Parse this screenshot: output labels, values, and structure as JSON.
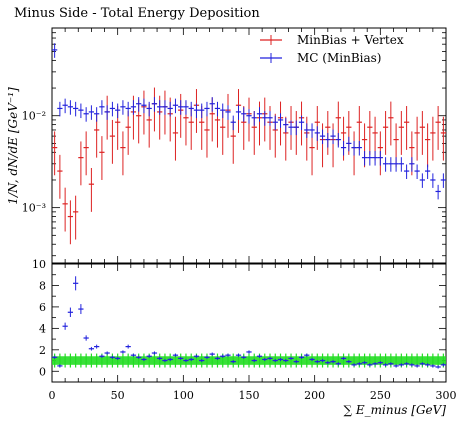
{
  "chart_data": [
    {
      "type": "scatter",
      "title": "Minus Side - Total Energy Deposition",
      "ylabel": "1/N, dN/dE [GeV⁻¹]",
      "yscale": "log",
      "ylim": [
        0.00025,
        0.09
      ],
      "xlim": [
        0,
        300
      ],
      "ytick_labels": [
        "10⁻³",
        "10⁻²"
      ],
      "legend_position": "top-right",
      "series": [
        {
          "name": "MinBias + Vertex",
          "color": "#dd2222",
          "x": [
            2,
            6,
            10,
            14,
            18,
            22,
            26,
            30,
            34,
            38,
            42,
            46,
            50,
            54,
            58,
            62,
            66,
            70,
            74,
            78,
            82,
            86,
            90,
            94,
            98,
            102,
            106,
            110,
            114,
            118,
            122,
            126,
            130,
            134,
            138,
            142,
            146,
            150,
            154,
            158,
            162,
            166,
            170,
            174,
            178,
            182,
            186,
            190,
            194,
            198,
            202,
            206,
            210,
            214,
            218,
            222,
            226,
            230,
            234,
            238,
            242,
            246,
            250,
            254,
            258,
            262,
            266,
            270,
            274,
            278,
            282,
            286,
            290,
            294,
            298
          ],
          "y": [
            0.0045,
            0.0025,
            0.0011,
            0.0008,
            0.0009,
            0.0035,
            0.0045,
            0.0018,
            0.007,
            0.004,
            0.011,
            0.006,
            0.0085,
            0.0045,
            0.0075,
            0.011,
            0.01,
            0.0125,
            0.009,
            0.0135,
            0.011,
            0.0125,
            0.0105,
            0.0065,
            0.0115,
            0.0095,
            0.0085,
            0.013,
            0.0085,
            0.007,
            0.0105,
            0.009,
            0.0075,
            0.0115,
            0.006,
            0.013,
            0.0085,
            0.0105,
            0.0075,
            0.0095,
            0.0105,
            0.0085,
            0.007,
            0.0095,
            0.0065,
            0.0085,
            0.0075,
            0.0095,
            0.0065,
            0.0045,
            0.0085,
            0.0055,
            0.0075,
            0.0055,
            0.0095,
            0.0065,
            0.0075,
            0.0045,
            0.0085,
            0.0055,
            0.0075,
            0.0065,
            0.0045,
            0.0075,
            0.0095,
            0.0055,
            0.0075,
            0.0085,
            0.0045,
            0.0065,
            0.0075,
            0.0055,
            0.0065,
            0.0085,
            0.0065
          ]
        },
        {
          "name": "MC (MinBias)",
          "color": "#2222dd",
          "x": [
            2,
            6,
            10,
            14,
            18,
            22,
            26,
            30,
            34,
            38,
            42,
            46,
            50,
            54,
            58,
            62,
            66,
            70,
            74,
            78,
            82,
            86,
            90,
            94,
            98,
            102,
            106,
            110,
            114,
            118,
            122,
            126,
            130,
            134,
            138,
            142,
            146,
            150,
            154,
            158,
            162,
            166,
            170,
            174,
            178,
            182,
            186,
            190,
            194,
            198,
            202,
            206,
            210,
            214,
            218,
            222,
            226,
            230,
            234,
            238,
            242,
            246,
            250,
            254,
            258,
            262,
            266,
            270,
            274,
            278,
            282,
            286,
            290,
            294,
            298
          ],
          "y": [
            0.052,
            0.012,
            0.013,
            0.0125,
            0.012,
            0.0115,
            0.0105,
            0.011,
            0.0105,
            0.0125,
            0.011,
            0.012,
            0.0115,
            0.0125,
            0.012,
            0.0125,
            0.0135,
            0.013,
            0.012,
            0.0135,
            0.0125,
            0.0125,
            0.012,
            0.013,
            0.0125,
            0.0125,
            0.012,
            0.0115,
            0.0115,
            0.012,
            0.0135,
            0.012,
            0.0115,
            0.011,
            0.0085,
            0.011,
            0.0105,
            0.01,
            0.0095,
            0.0105,
            0.0095,
            0.0095,
            0.0085,
            0.009,
            0.008,
            0.0075,
            0.0075,
            0.0085,
            0.007,
            0.007,
            0.0065,
            0.006,
            0.0055,
            0.006,
            0.0055,
            0.0045,
            0.005,
            0.0045,
            0.0045,
            0.0035,
            0.0035,
            0.0035,
            0.0035,
            0.003,
            0.003,
            0.003,
            0.003,
            0.0025,
            0.003,
            0.0025,
            0.002,
            0.0025,
            0.002,
            0.0015,
            0.002
          ]
        }
      ]
    },
    {
      "type": "scatter",
      "xlabel": "∑ E_minus [GeV]",
      "xlim": [
        0,
        300
      ],
      "ylim": [
        -1,
        10
      ],
      "xtick_labels": [
        "0",
        "50",
        "100",
        "150",
        "200",
        "250",
        "300"
      ],
      "ytick_labels": [
        "0",
        "2",
        "4",
        "6",
        "8",
        "10"
      ],
      "band_color": "#22dd22",
      "band": {
        "lower": 0.6,
        "upper": 1.4
      },
      "series": [
        {
          "color": "#2222dd",
          "x": [
            2,
            6,
            10,
            14,
            18,
            22,
            26,
            30,
            34,
            38,
            42,
            46,
            50,
            54,
            58,
            62,
            66,
            70,
            74,
            78,
            82,
            86,
            90,
            94,
            98,
            102,
            106,
            110,
            114,
            118,
            122,
            126,
            130,
            134,
            138,
            142,
            146,
            150,
            154,
            158,
            162,
            166,
            170,
            174,
            178,
            182,
            186,
            190,
            194,
            198,
            202,
            206,
            210,
            214,
            218,
            222,
            226,
            230,
            234,
            238,
            242,
            246,
            250,
            254,
            258,
            262,
            266,
            270,
            274,
            278,
            282,
            286,
            290,
            294,
            298
          ],
          "y": [
            1.3,
            0.5,
            4.2,
            5.5,
            8.2,
            5.8,
            3.1,
            2.1,
            2.3,
            1.4,
            1.7,
            1.3,
            1.2,
            1.8,
            2.3,
            1.5,
            1.3,
            1.1,
            1.4,
            1.7,
            1.2,
            1.0,
            1.1,
            1.5,
            1.2,
            1.0,
            1.1,
            1.4,
            1.0,
            1.3,
            1.6,
            1.2,
            1.4,
            1.5,
            0.9,
            1.5,
            1.3,
            1.8,
            1.0,
            1.4,
            1.1,
            1.2,
            1.0,
            1.1,
            1.0,
            1.2,
            0.9,
            1.3,
            1.5,
            1.1,
            0.9,
            1.0,
            0.8,
            0.9,
            0.7,
            1.2,
            0.9,
            0.6,
            0.7,
            0.8,
            0.6,
            0.7,
            0.8,
            0.6,
            0.7,
            0.5,
            0.6,
            0.7,
            0.6,
            0.5,
            0.7,
            0.6,
            0.5,
            0.4,
            0.6
          ]
        }
      ]
    }
  ]
}
